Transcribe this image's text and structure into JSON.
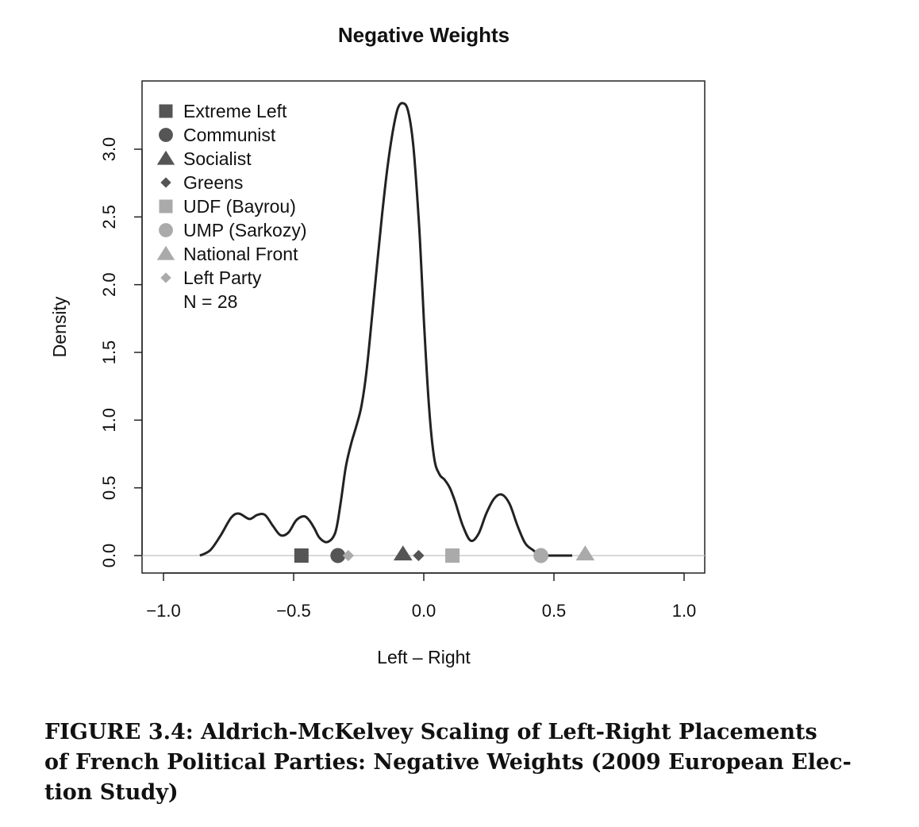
{
  "chart_data": {
    "type": "density",
    "title": "Negative Weights",
    "xlabel": "Left – Right",
    "ylabel": "Density",
    "xlim": [
      -1.0,
      1.0
    ],
    "ylim": [
      0.0,
      3.3
    ],
    "x_ticks": [
      "−1.0",
      "−0.5",
      "0.0",
      "0.5",
      "1.0"
    ],
    "x_tick_values": [
      -1.0,
      -0.5,
      0.0,
      0.5,
      1.0
    ],
    "y_ticks": [
      "0.0",
      "0.5",
      "1.0",
      "1.5",
      "2.0",
      "2.5",
      "3.0"
    ],
    "y_tick_values": [
      0.0,
      0.5,
      1.0,
      1.5,
      2.0,
      2.5,
      3.0
    ],
    "density_curve": {
      "x": [
        -0.86,
        -0.82,
        -0.78,
        -0.74,
        -0.71,
        -0.67,
        -0.64,
        -0.61,
        -0.58,
        -0.55,
        -0.52,
        -0.49,
        -0.46,
        -0.44,
        -0.42,
        -0.4,
        -0.37,
        -0.34,
        -0.32,
        -0.3,
        -0.28,
        -0.26,
        -0.24,
        -0.22,
        -0.2,
        -0.18,
        -0.16,
        -0.14,
        -0.12,
        -0.1,
        -0.08,
        -0.06,
        -0.04,
        -0.02,
        -0.01,
        0.0,
        0.02,
        0.04,
        0.06,
        0.08,
        0.1,
        0.12,
        0.15,
        0.18,
        0.21,
        0.24,
        0.27,
        0.3,
        0.33,
        0.36,
        0.39,
        0.42,
        0.45,
        0.48,
        0.51,
        0.54,
        0.57
      ],
      "y": [
        0.0,
        0.04,
        0.15,
        0.28,
        0.31,
        0.27,
        0.3,
        0.3,
        0.22,
        0.15,
        0.17,
        0.26,
        0.29,
        0.26,
        0.2,
        0.13,
        0.1,
        0.17,
        0.38,
        0.65,
        0.82,
        0.95,
        1.1,
        1.36,
        1.74,
        2.14,
        2.52,
        2.86,
        3.12,
        3.3,
        3.34,
        3.28,
        3.02,
        2.5,
        2.15,
        1.75,
        1.1,
        0.72,
        0.6,
        0.56,
        0.5,
        0.4,
        0.22,
        0.11,
        0.16,
        0.31,
        0.42,
        0.45,
        0.38,
        0.22,
        0.09,
        0.04,
        0.0,
        0.0,
        0.0,
        0.0,
        0.0
      ]
    },
    "party_points": [
      {
        "name": "Extreme Left",
        "x": -0.47,
        "shape": "square",
        "color": "#555555"
      },
      {
        "name": "Communist",
        "x": -0.33,
        "shape": "circle",
        "color": "#555555"
      },
      {
        "name": "Socialist",
        "x": -0.08,
        "shape": "triangle",
        "color": "#555555"
      },
      {
        "name": "Greens",
        "x": -0.02,
        "shape": "diamond",
        "color": "#555555"
      },
      {
        "name": "UDF (Bayrou)",
        "x": 0.11,
        "shape": "square",
        "color": "#aaaaaa"
      },
      {
        "name": "UMP (Sarkozy)",
        "x": 0.45,
        "shape": "circle",
        "color": "#aaaaaa"
      },
      {
        "name": "National Front",
        "x": 0.62,
        "shape": "triangle",
        "color": "#aaaaaa"
      },
      {
        "name": "Left Party",
        "x": -0.29,
        "shape": "diamond",
        "color": "#aaaaaa"
      }
    ],
    "legend": {
      "placement": "top-left",
      "entries": [
        "Extreme Left",
        "Communist",
        "Socialist",
        "Greens",
        "UDF (Bayrou)",
        "UMP (Sarkozy)",
        "National Front",
        "Left Party"
      ],
      "note": "N = 28"
    },
    "baseline_color": "#cccccc",
    "curve_color": "#222222"
  },
  "caption": {
    "line1": "FIGURE 3.4: Aldrich-McKelvey Scaling of Left-Right Placements",
    "line2": "of French Political Parties: Negative Weights (2009 European Elec-",
    "line3": "tion Study)"
  }
}
